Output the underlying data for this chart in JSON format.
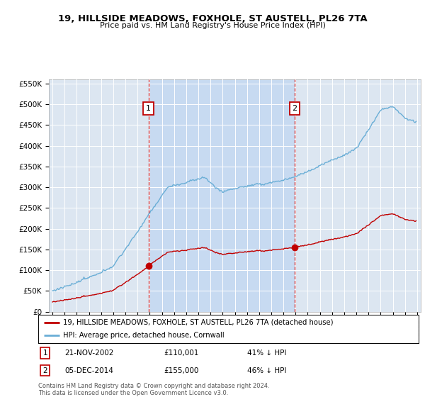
{
  "title": "19, HILLSIDE MEADOWS, FOXHOLE, ST AUSTELL, PL26 7TA",
  "subtitle": "Price paid vs. HM Land Registry's House Price Index (HPI)",
  "hpi_label": "HPI: Average price, detached house, Cornwall",
  "price_label": "19, HILLSIDE MEADOWS, FOXHOLE, ST AUSTELL, PL26 7TA (detached house)",
  "sale1_date": "21-NOV-2002",
  "sale1_price": 110001,
  "sale1_pct": "41% ↓ HPI",
  "sale1_year": 2002.89,
  "sale2_date": "05-DEC-2014",
  "sale2_price": 155000,
  "sale2_pct": "46% ↓ HPI",
  "sale2_year": 2014.92,
  "hpi_color": "#6aaed6",
  "price_color": "#c00000",
  "vline_color": "#cc0000",
  "bg_color": "#dce6f1",
  "shade_color": "#c5d9f1",
  "footer": "Contains HM Land Registry data © Crown copyright and database right 2024.\nThis data is licensed under the Open Government Licence v3.0.",
  "ylim": [
    0,
    560000
  ],
  "yticks": [
    0,
    50000,
    100000,
    150000,
    200000,
    250000,
    300000,
    350000,
    400000,
    450000,
    500000,
    550000
  ],
  "xlim_start": 1994.7,
  "xlim_end": 2025.3
}
